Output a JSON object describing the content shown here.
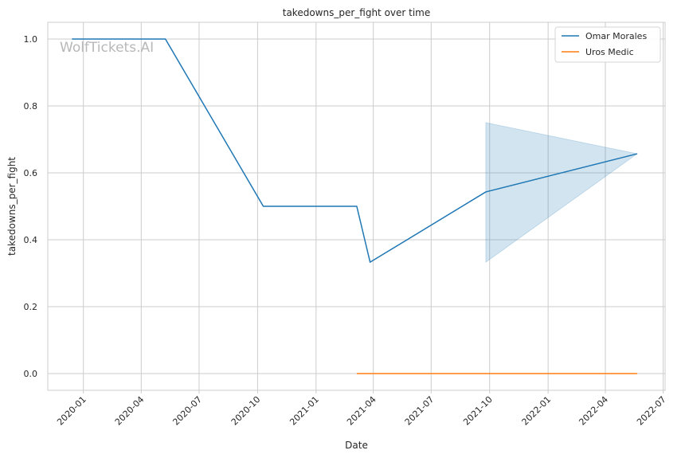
{
  "chart_data": {
    "type": "line",
    "title": "takedowns_per_fight over time",
    "xlabel": "Date",
    "ylabel": "takedowns_per_fight",
    "watermark": "WolfTickets.AI",
    "x_ticks": [
      "2020-01",
      "2020-04",
      "2020-07",
      "2020-10",
      "2021-01",
      "2021-04",
      "2021-07",
      "2021-10",
      "2022-01",
      "2022-04",
      "2022-07"
    ],
    "y_ticks": [
      "0.0",
      "0.2",
      "0.4",
      "0.6",
      "0.8",
      "1.0"
    ],
    "xlim": [
      "2019-11-06",
      "2022-07-04"
    ],
    "ylim": [
      -0.05,
      1.05
    ],
    "grid": true,
    "legend_position": "top-right",
    "series": [
      {
        "name": "Omar Morales",
        "color": "#1f77b4",
        "points": [
          {
            "x": "2019-12-14",
            "y": 1.0
          },
          {
            "x": "2020-05-09",
            "y": 1.0
          },
          {
            "x": "2020-10-10",
            "y": 0.5
          },
          {
            "x": "2021-03-06",
            "y": 0.5
          },
          {
            "x": "2021-03-27",
            "y": 0.333
          },
          {
            "x": "2021-09-25",
            "y": 0.543
          },
          {
            "x": "2022-05-21",
            "y": 0.657
          }
        ],
        "band": [
          {
            "x": "2021-09-25",
            "low": 0.333,
            "high": 0.75
          },
          {
            "x": "2022-05-21",
            "low": 0.657,
            "high": 0.657
          }
        ]
      },
      {
        "name": "Uros Medic",
        "color": "#ff7f0e",
        "points": [
          {
            "x": "2021-03-06",
            "y": 0.0
          },
          {
            "x": "2022-05-21",
            "y": 0.0
          }
        ]
      }
    ]
  }
}
